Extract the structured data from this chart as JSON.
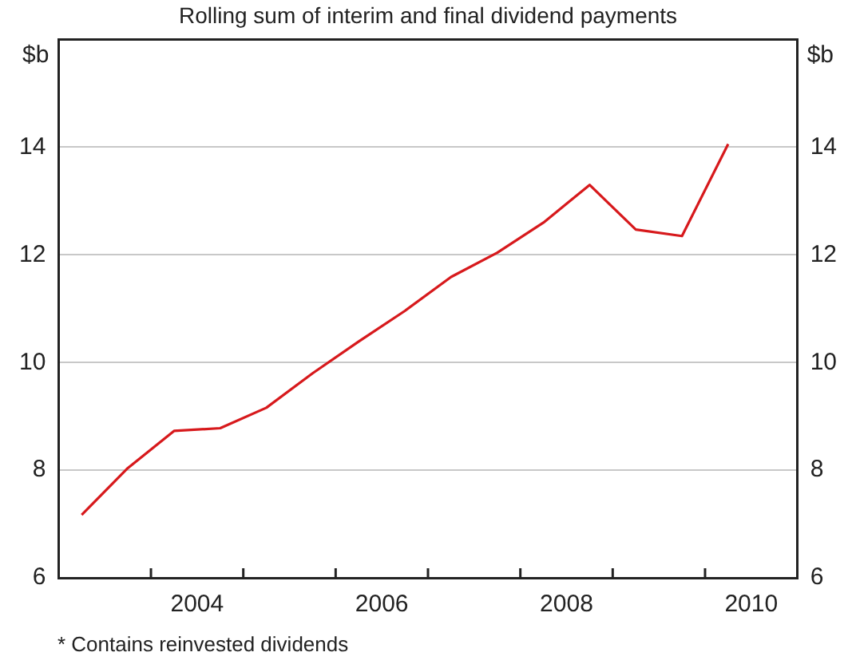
{
  "chart_data": {
    "type": "line",
    "title": "Rolling sum of interim and final dividend payments",
    "ylabel": "$b",
    "y2label": "$b",
    "x": [
      2003.25,
      2003.75,
      2004.25,
      2004.75,
      2005.25,
      2005.75,
      2006.25,
      2006.75,
      2007.25,
      2007.75,
      2008.25,
      2008.75,
      2009.25,
      2009.75,
      2010.25
    ],
    "series": [
      {
        "color": "#d7191c",
        "values": [
          7.17,
          8.04,
          8.73,
          8.78,
          9.16,
          9.8,
          10.39,
          10.96,
          11.59,
          12.04,
          12.6,
          13.3,
          12.47,
          12.35,
          14.06
        ]
      }
    ],
    "xlim": [
      2003,
      2011
    ],
    "xticks": [
      {
        "value": 2004,
        "label": null
      },
      {
        "value": 2004.5,
        "label": "2004"
      },
      {
        "value": 2005,
        "label": null
      },
      {
        "value": 2006,
        "label": null
      },
      {
        "value": 2006.5,
        "label": "2006"
      },
      {
        "value": 2007,
        "label": null
      },
      {
        "value": 2008,
        "label": null
      },
      {
        "value": 2008.5,
        "label": "2008"
      },
      {
        "value": 2009,
        "label": null
      },
      {
        "value": 2010,
        "label": null
      },
      {
        "value": 2010.5,
        "label": "2010"
      }
    ],
    "ylim": [
      6,
      16
    ],
    "yticks": [
      6,
      8,
      10,
      12,
      14
    ],
    "y2lim": [
      6,
      16
    ],
    "y2ticks": [
      6,
      8,
      10,
      12,
      14
    ],
    "grid": "y",
    "legend": false,
    "marker": "none",
    "line_style": "solid",
    "annotations": [
      "*   Contains reinvested dividends"
    ]
  }
}
